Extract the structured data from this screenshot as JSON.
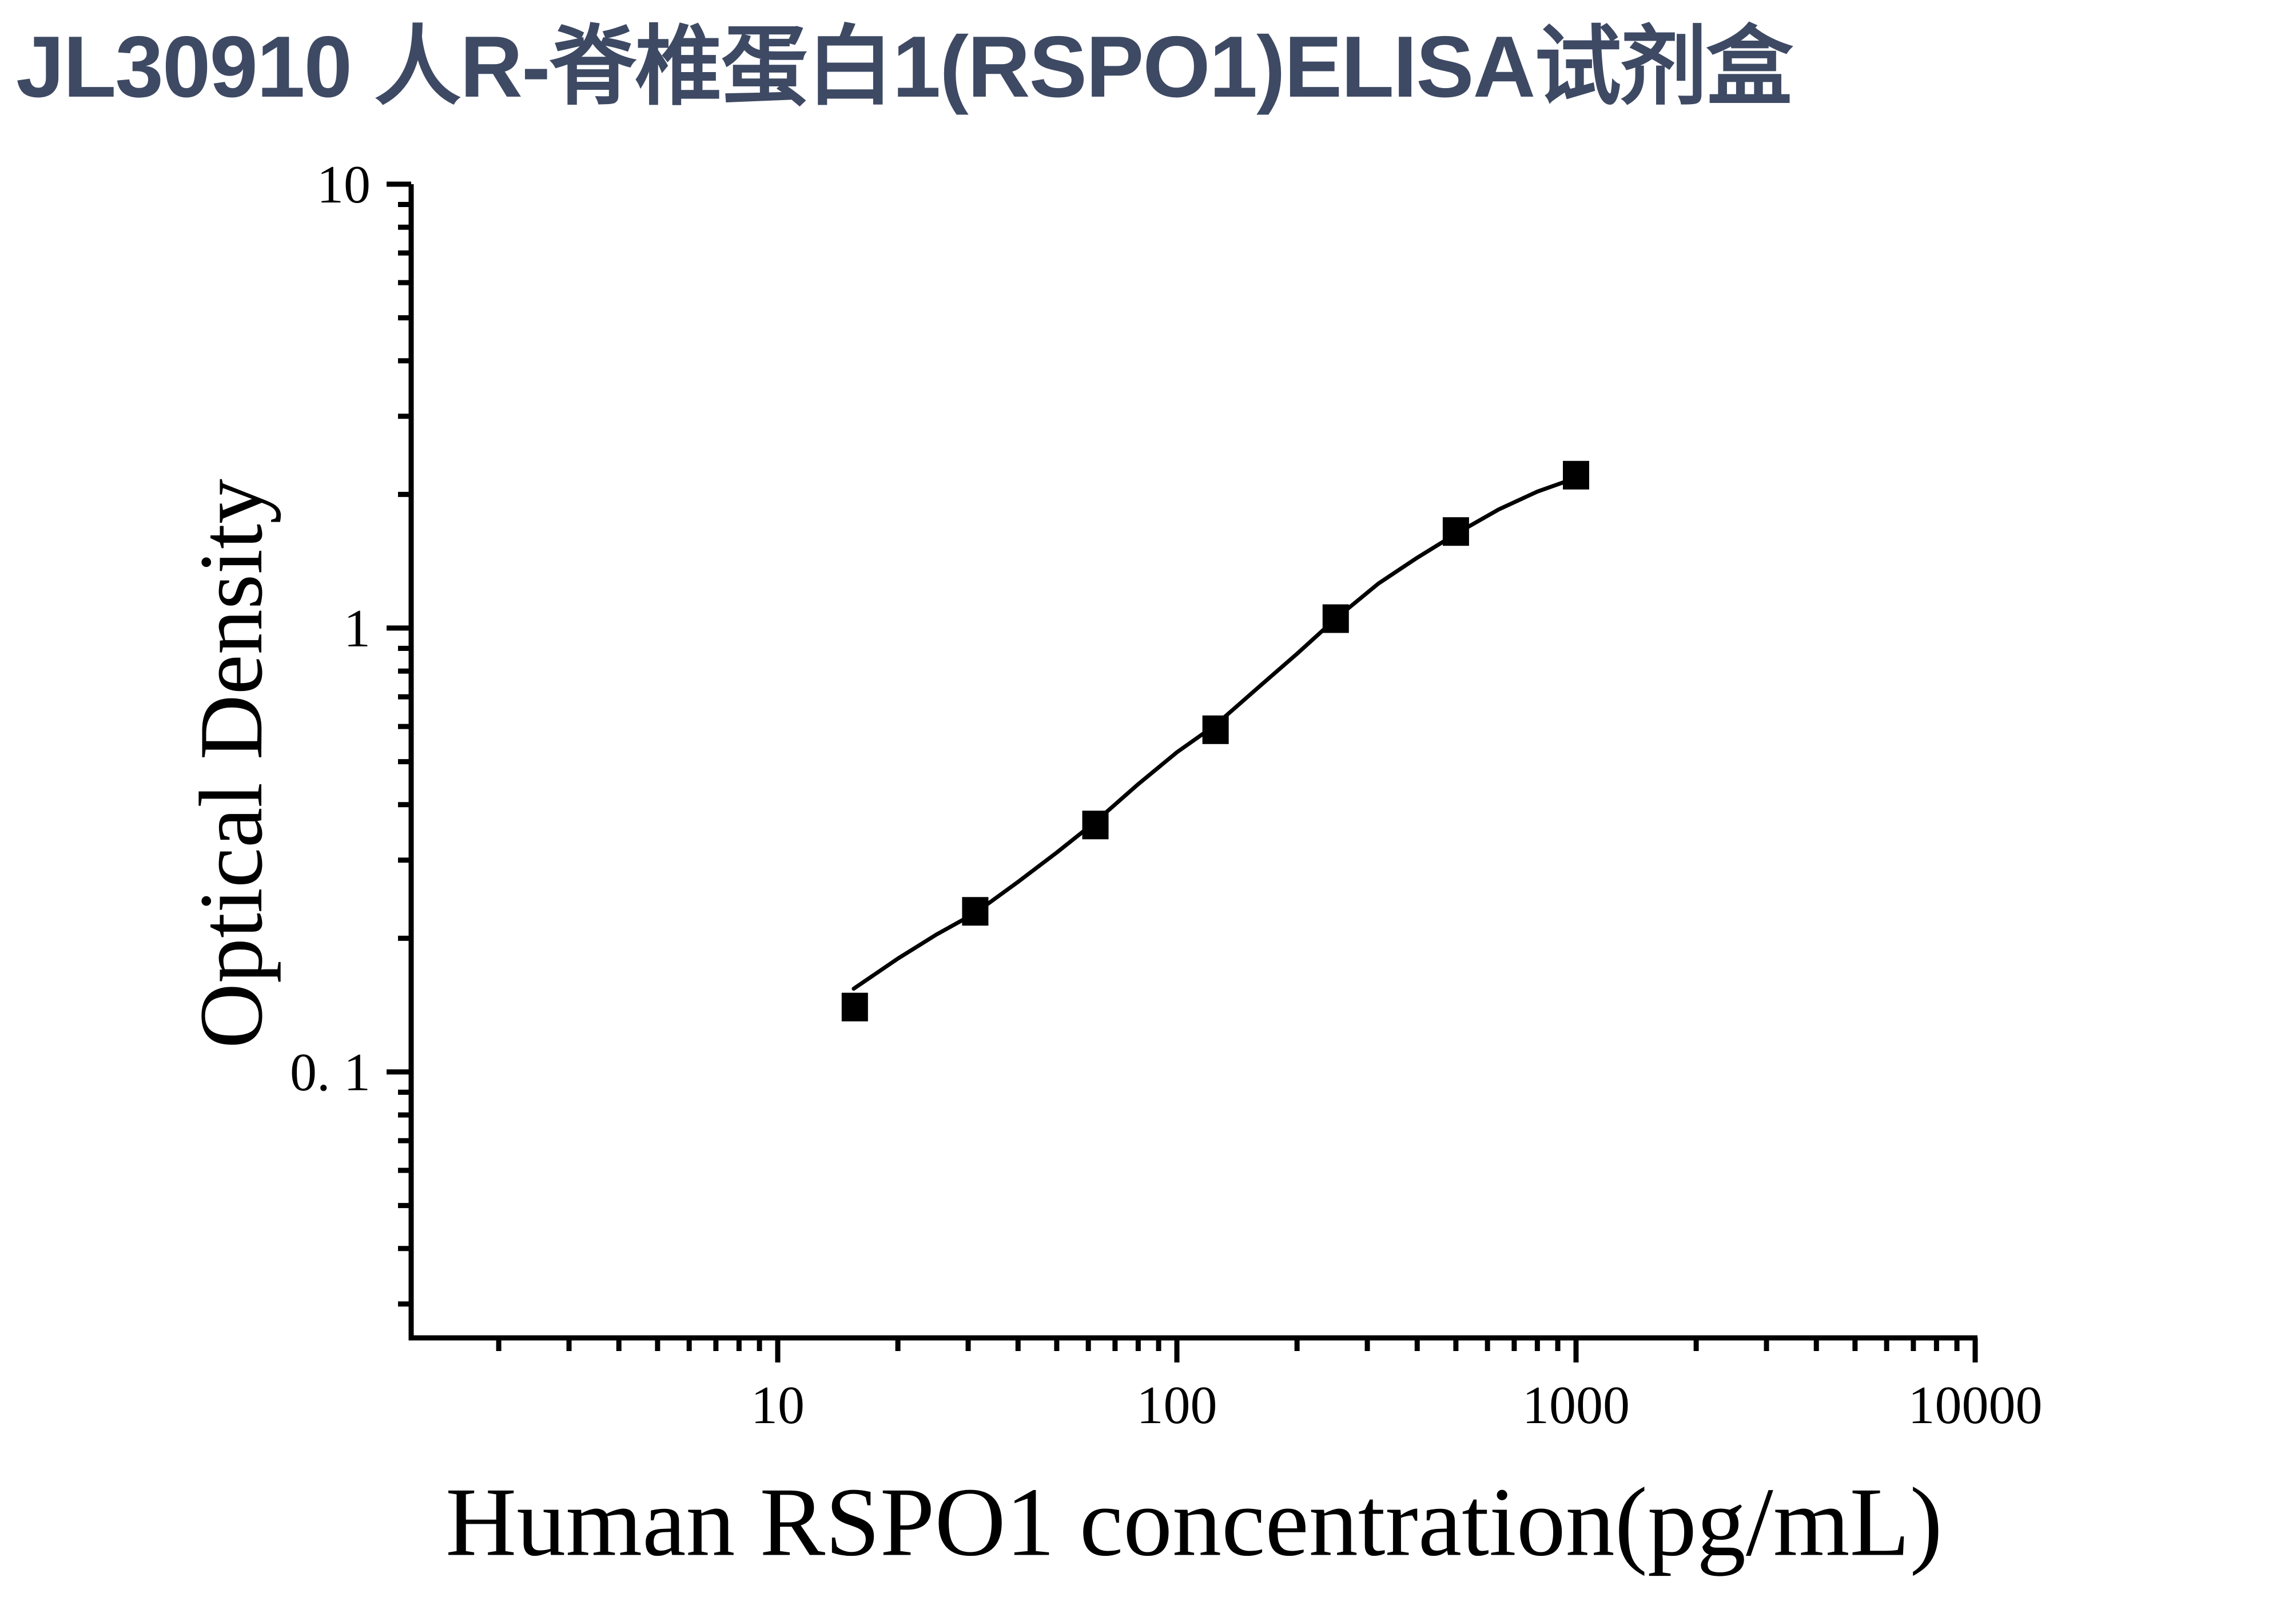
{
  "page": {
    "title": "JL30910 人R-脊椎蛋白1(RSPO1)ELISA试剂盒",
    "title_color": "#3E4A64",
    "background": "#FFFFFF"
  },
  "chart_data": {
    "type": "scatter",
    "title": "",
    "xlabel": "Human RSPO1 concentration(pg/mL)",
    "ylabel": "Optical Density",
    "x_scale": "log",
    "y_scale": "log",
    "xlim": [
      1.2,
      10000
    ],
    "ylim": [
      0.025,
      10
    ],
    "grid": false,
    "legend": "none",
    "axis_color": "#000000",
    "marker": "filled-square",
    "marker_color": "#000000",
    "line_color": "#000000",
    "x_major_ticks": [
      {
        "value": 10,
        "label": "10"
      },
      {
        "value": 100,
        "label": "100"
      },
      {
        "value": 1000,
        "label": "1000"
      },
      {
        "value": 10000,
        "label": "10000"
      }
    ],
    "y_major_ticks": [
      {
        "value": 10,
        "label": "10"
      },
      {
        "value": 1,
        "label": "1"
      },
      {
        "value": 0.1,
        "label": "0. 1"
      }
    ],
    "points": [
      {
        "x": 15.6,
        "y": 0.14
      },
      {
        "x": 31.25,
        "y": 0.23
      },
      {
        "x": 62.5,
        "y": 0.36
      },
      {
        "x": 125,
        "y": 0.59
      },
      {
        "x": 250,
        "y": 1.05
      },
      {
        "x": 500,
        "y": 1.65
      },
      {
        "x": 1000,
        "y": 2.21
      }
    ],
    "fit_curve": [
      {
        "x": 15.5,
        "y": 0.154
      },
      {
        "x": 20,
        "y": 0.18
      },
      {
        "x": 25,
        "y": 0.204
      },
      {
        "x": 31.25,
        "y": 0.228
      },
      {
        "x": 40,
        "y": 0.268
      },
      {
        "x": 50,
        "y": 0.312
      },
      {
        "x": 62.5,
        "y": 0.366
      },
      {
        "x": 80,
        "y": 0.445
      },
      {
        "x": 100,
        "y": 0.525
      },
      {
        "x": 125,
        "y": 0.605
      },
      {
        "x": 160,
        "y": 0.735
      },
      {
        "x": 200,
        "y": 0.875
      },
      {
        "x": 250,
        "y": 1.05
      },
      {
        "x": 320,
        "y": 1.26
      },
      {
        "x": 400,
        "y": 1.44
      },
      {
        "x": 500,
        "y": 1.63
      },
      {
        "x": 640,
        "y": 1.85
      },
      {
        "x": 800,
        "y": 2.03
      },
      {
        "x": 1000,
        "y": 2.18
      }
    ]
  }
}
